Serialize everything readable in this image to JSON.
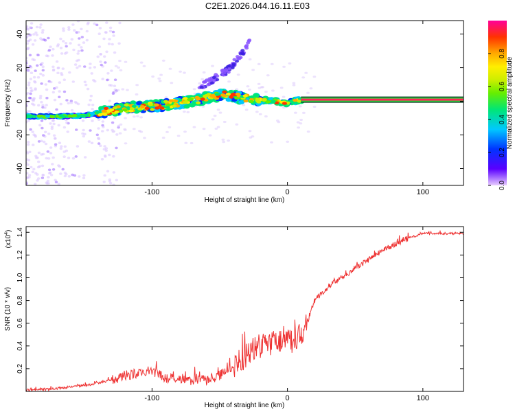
{
  "title": "C2E1.2026.044.16.11.E03",
  "chart_data": [
    {
      "type": "heatmap",
      "name": "spectrogram",
      "xlabel": "Height of straight line (km)",
      "ylabel": "Frequency (Hz)",
      "xlim": [
        -193,
        130
      ],
      "ylim": [
        -50,
        48
      ],
      "xticks": [
        -100,
        0,
        100
      ],
      "yticks": [
        -40,
        -20,
        0,
        20,
        40
      ],
      "colorbar": {
        "label": "Normalized spectral amplitude",
        "range": [
          0,
          1
        ],
        "ticks": [
          "0.0",
          "0.2",
          "0.4",
          "0.6",
          "0.8"
        ],
        "colors": [
          "#e8ccff",
          "#5a00ff",
          "#0033ff",
          "#00c8ff",
          "#00e676",
          "#66ee00",
          "#ccee00",
          "#ffee00",
          "#ffaa00",
          "#ff3300",
          "#ff0099"
        ]
      },
      "ridge": {
        "height_km": [
          -193,
          -170,
          -150,
          -135,
          -120,
          -100,
          -80,
          -60,
          -45,
          -35,
          -20,
          -10,
          0,
          10,
          130
        ],
        "frequency_hz": [
          -9,
          -9,
          -8.5,
          -6,
          -4,
          -3,
          -1,
          2,
          4,
          2,
          1,
          0,
          -1,
          1,
          1
        ]
      },
      "branch": {
        "height_km": [
          -65,
          -55,
          -45,
          -38,
          -32,
          -28
        ],
        "frequency_hz": [
          8,
          13,
          18,
          24,
          30,
          35
        ]
      }
    },
    {
      "type": "line",
      "name": "snr",
      "xlabel": "Height of straight line (km)",
      "ylabel": "SNR (10 * v/v)",
      "multiplier": "(x10",
      "multiplier_exp": "4",
      "xlim": [
        -193,
        130
      ],
      "ylim": [
        0,
        1.45
      ],
      "xticks": [
        -100,
        0,
        100
      ],
      "yticks": [
        0.2,
        0.4,
        0.6,
        0.8,
        1.0,
        1.2,
        1.4
      ],
      "ytick_labels": [
        "0.2",
        "0.4",
        "0.6",
        "0.8",
        "1.0",
        "1.2",
        "1.4"
      ],
      "color": "#ee3333",
      "series": [
        {
          "name": "SNR",
          "x": [
            -193,
            -175,
            -160,
            -145,
            -130,
            -120,
            -110,
            -100,
            -90,
            -80,
            -70,
            -60,
            -50,
            -40,
            -30,
            -25,
            -20,
            -15,
            -10,
            -5,
            0,
            5,
            10,
            15,
            20,
            30,
            40,
            50,
            60,
            70,
            80,
            90,
            100,
            110,
            120,
            130
          ],
          "y": [
            0.01,
            0.02,
            0.04,
            0.06,
            0.1,
            0.14,
            0.16,
            0.18,
            0.12,
            0.1,
            0.1,
            0.1,
            0.14,
            0.22,
            0.32,
            0.38,
            0.4,
            0.42,
            0.43,
            0.45,
            0.46,
            0.44,
            0.5,
            0.62,
            0.8,
            0.92,
            1.0,
            1.08,
            1.16,
            1.24,
            1.3,
            1.35,
            1.39,
            1.39,
            1.39,
            1.39
          ]
        }
      ]
    }
  ]
}
